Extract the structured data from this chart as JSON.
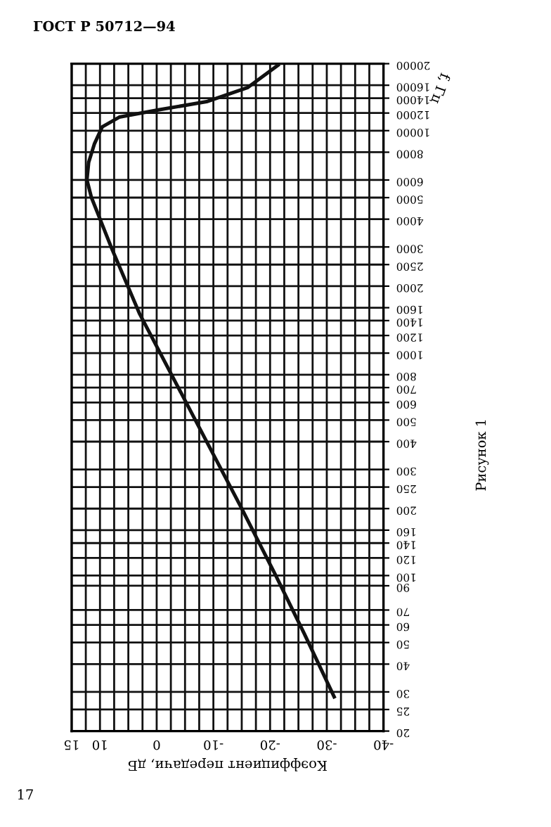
{
  "chart_data": {
    "type": "line",
    "title": "ГОСТ Р 50712—94",
    "xlabel": "Коэффициент передачи, дБ",
    "ylabel": "f, Гц",
    "annotations": [
      "Рисунок 1",
      "17"
    ],
    "log": "y",
    "grid": true,
    "marker": "none",
    "line_style": "solid",
    "xlim": [
      15,
      -40
    ],
    "ylim": [
      20,
      20000
    ],
    "xticks": [
      15,
      {
        "value": 12.5,
        "label": null
      },
      10,
      {
        "value": 7.5,
        "label": null
      },
      {
        "value": 5,
        "label": null
      },
      {
        "value": 2.5,
        "label": null
      },
      0,
      {
        "value": -2.5,
        "label": null
      },
      {
        "value": -5,
        "label": null
      },
      {
        "value": -7.5,
        "label": null
      },
      -10,
      {
        "value": -12.5,
        "label": null
      },
      {
        "value": -15,
        "label": null
      },
      {
        "value": -17.5,
        "label": null
      },
      -20,
      {
        "value": -22.5,
        "label": null
      },
      {
        "value": -25,
        "label": null
      },
      {
        "value": -27.5,
        "label": null
      },
      -30,
      {
        "value": -32.5,
        "label": null
      },
      {
        "value": -35,
        "label": null
      },
      {
        "value": -37.5,
        "label": null
      },
      -40
    ],
    "yticks": [
      20,
      25,
      30,
      40,
      50,
      60,
      70,
      90,
      100,
      120,
      140,
      160,
      200,
      250,
      300,
      400,
      500,
      600,
      700,
      800,
      1000,
      1200,
      1400,
      1600,
      2000,
      2500,
      3000,
      4000,
      5000,
      6000,
      8000,
      10000,
      12000,
      14000,
      16000,
      20000
    ],
    "series": [
      {
        "color": "#111111",
        "values": [
          28.5,
          55,
          100,
          200,
          490,
          1500,
          2900,
          5000,
          6000,
          7200,
          8700,
          10400,
          11500,
          12400,
          13500,
          15600,
          19700
        ],
        "x": [
          -31.3,
          -26,
          -21,
          -15,
          -7,
          3,
          7.8,
          11.5,
          12.3,
          12,
          11,
          9.6,
          6.6,
          -0.3,
          -8.8,
          -16,
          -21.4
        ]
      }
    ]
  }
}
